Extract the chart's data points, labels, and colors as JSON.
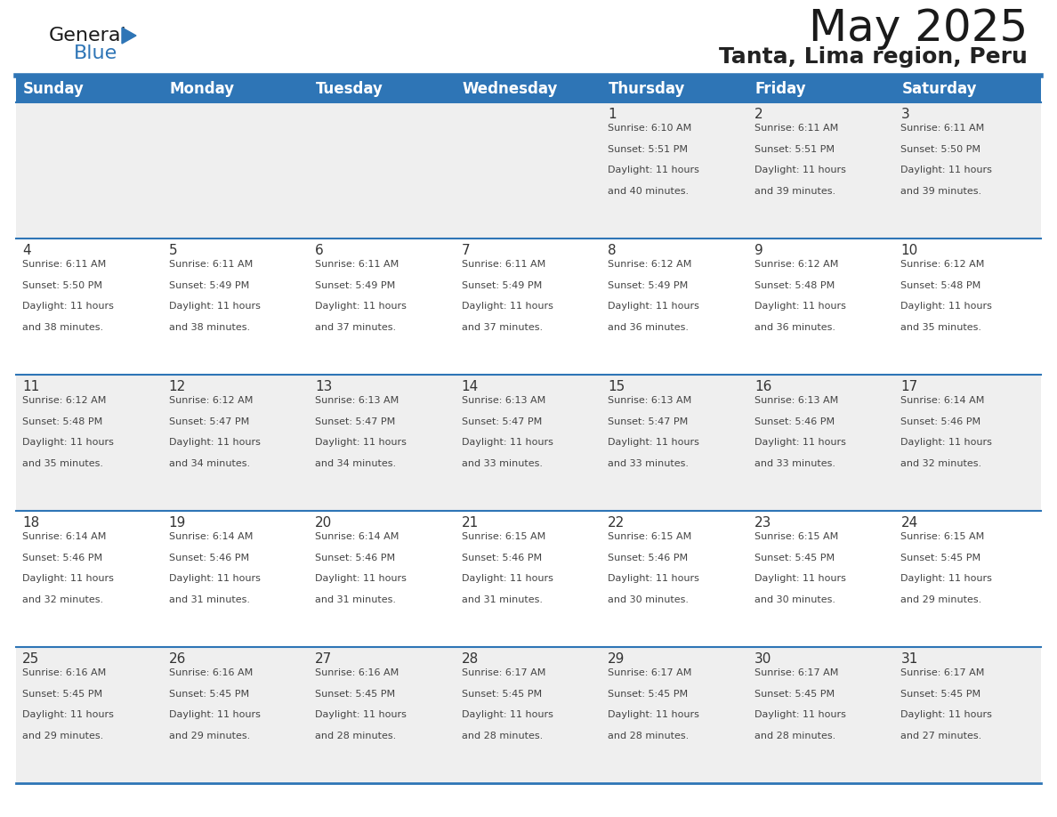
{
  "title": "May 2025",
  "subtitle": "Tanta, Lima region, Peru",
  "header_bg_color": "#2E75B6",
  "header_text_color": "#FFFFFF",
  "day_names": [
    "Sunday",
    "Monday",
    "Tuesday",
    "Wednesday",
    "Thursday",
    "Friday",
    "Saturday"
  ],
  "row_bg_even": "#EFEFEF",
  "row_bg_odd": "#FFFFFF",
  "cell_text_color": "#444444",
  "day_number_color": "#333333",
  "divider_color": "#2E75B6",
  "background_color": "#FFFFFF",
  "title_fontsize": 36,
  "subtitle_fontsize": 18,
  "header_fontsize": 12,
  "day_num_fontsize": 11,
  "cell_fontsize": 8,
  "calendar_data": [
    [
      {
        "day": "",
        "sunrise": "",
        "sunset": "",
        "daylight": ""
      },
      {
        "day": "",
        "sunrise": "",
        "sunset": "",
        "daylight": ""
      },
      {
        "day": "",
        "sunrise": "",
        "sunset": "",
        "daylight": ""
      },
      {
        "day": "",
        "sunrise": "",
        "sunset": "",
        "daylight": ""
      },
      {
        "day": "1",
        "sunrise": "6:10 AM",
        "sunset": "5:51 PM",
        "daylight": "11 hours and 40 minutes."
      },
      {
        "day": "2",
        "sunrise": "6:11 AM",
        "sunset": "5:51 PM",
        "daylight": "11 hours and 39 minutes."
      },
      {
        "day": "3",
        "sunrise": "6:11 AM",
        "sunset": "5:50 PM",
        "daylight": "11 hours and 39 minutes."
      }
    ],
    [
      {
        "day": "4",
        "sunrise": "6:11 AM",
        "sunset": "5:50 PM",
        "daylight": "11 hours and 38 minutes."
      },
      {
        "day": "5",
        "sunrise": "6:11 AM",
        "sunset": "5:49 PM",
        "daylight": "11 hours and 38 minutes."
      },
      {
        "day": "6",
        "sunrise": "6:11 AM",
        "sunset": "5:49 PM",
        "daylight": "11 hours and 37 minutes."
      },
      {
        "day": "7",
        "sunrise": "6:11 AM",
        "sunset": "5:49 PM",
        "daylight": "11 hours and 37 minutes."
      },
      {
        "day": "8",
        "sunrise": "6:12 AM",
        "sunset": "5:49 PM",
        "daylight": "11 hours and 36 minutes."
      },
      {
        "day": "9",
        "sunrise": "6:12 AM",
        "sunset": "5:48 PM",
        "daylight": "11 hours and 36 minutes."
      },
      {
        "day": "10",
        "sunrise": "6:12 AM",
        "sunset": "5:48 PM",
        "daylight": "11 hours and 35 minutes."
      }
    ],
    [
      {
        "day": "11",
        "sunrise": "6:12 AM",
        "sunset": "5:48 PM",
        "daylight": "11 hours and 35 minutes."
      },
      {
        "day": "12",
        "sunrise": "6:12 AM",
        "sunset": "5:47 PM",
        "daylight": "11 hours and 34 minutes."
      },
      {
        "day": "13",
        "sunrise": "6:13 AM",
        "sunset": "5:47 PM",
        "daylight": "11 hours and 34 minutes."
      },
      {
        "day": "14",
        "sunrise": "6:13 AM",
        "sunset": "5:47 PM",
        "daylight": "11 hours and 33 minutes."
      },
      {
        "day": "15",
        "sunrise": "6:13 AM",
        "sunset": "5:47 PM",
        "daylight": "11 hours and 33 minutes."
      },
      {
        "day": "16",
        "sunrise": "6:13 AM",
        "sunset": "5:46 PM",
        "daylight": "11 hours and 33 minutes."
      },
      {
        "day": "17",
        "sunrise": "6:14 AM",
        "sunset": "5:46 PM",
        "daylight": "11 hours and 32 minutes."
      }
    ],
    [
      {
        "day": "18",
        "sunrise": "6:14 AM",
        "sunset": "5:46 PM",
        "daylight": "11 hours and 32 minutes."
      },
      {
        "day": "19",
        "sunrise": "6:14 AM",
        "sunset": "5:46 PM",
        "daylight": "11 hours and 31 minutes."
      },
      {
        "day": "20",
        "sunrise": "6:14 AM",
        "sunset": "5:46 PM",
        "daylight": "11 hours and 31 minutes."
      },
      {
        "day": "21",
        "sunrise": "6:15 AM",
        "sunset": "5:46 PM",
        "daylight": "11 hours and 31 minutes."
      },
      {
        "day": "22",
        "sunrise": "6:15 AM",
        "sunset": "5:46 PM",
        "daylight": "11 hours and 30 minutes."
      },
      {
        "day": "23",
        "sunrise": "6:15 AM",
        "sunset": "5:45 PM",
        "daylight": "11 hours and 30 minutes."
      },
      {
        "day": "24",
        "sunrise": "6:15 AM",
        "sunset": "5:45 PM",
        "daylight": "11 hours and 29 minutes."
      }
    ],
    [
      {
        "day": "25",
        "sunrise": "6:16 AM",
        "sunset": "5:45 PM",
        "daylight": "11 hours and 29 minutes."
      },
      {
        "day": "26",
        "sunrise": "6:16 AM",
        "sunset": "5:45 PM",
        "daylight": "11 hours and 29 minutes."
      },
      {
        "day": "27",
        "sunrise": "6:16 AM",
        "sunset": "5:45 PM",
        "daylight": "11 hours and 28 minutes."
      },
      {
        "day": "28",
        "sunrise": "6:17 AM",
        "sunset": "5:45 PM",
        "daylight": "11 hours and 28 minutes."
      },
      {
        "day": "29",
        "sunrise": "6:17 AM",
        "sunset": "5:45 PM",
        "daylight": "11 hours and 28 minutes."
      },
      {
        "day": "30",
        "sunrise": "6:17 AM",
        "sunset": "5:45 PM",
        "daylight": "11 hours and 28 minutes."
      },
      {
        "day": "31",
        "sunrise": "6:17 AM",
        "sunset": "5:45 PM",
        "daylight": "11 hours and 27 minutes."
      }
    ]
  ]
}
